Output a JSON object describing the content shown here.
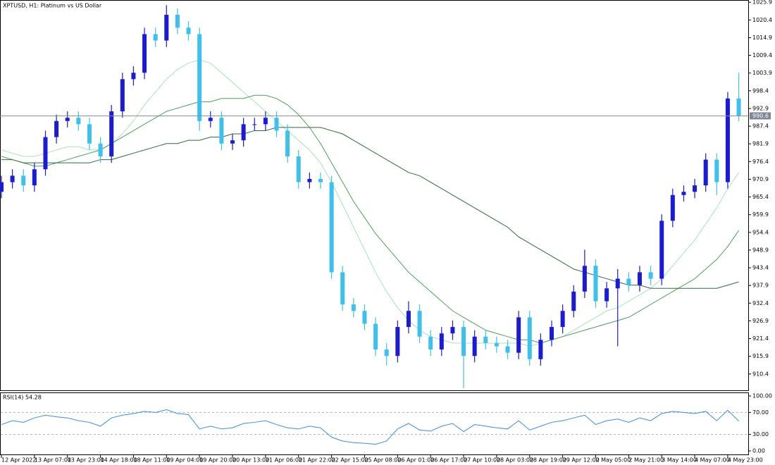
{
  "chart_data": [
    {
      "type": "candlestick",
      "title": "XPTUSD, H1:  Platinum vs US Dollar",
      "categories": [
        "12 Apr 2022",
        null,
        null,
        "13 Apr 07:00",
        null,
        null,
        "13 Apr 23:00",
        null,
        null,
        "14 Apr 18:00",
        null,
        null,
        "18 Apr 11:00",
        null,
        null,
        "19 Apr 04:00",
        null,
        null,
        "19 Apr 20:00",
        null,
        null,
        "20 Apr 13:00",
        null,
        null,
        "21 Apr 06:00",
        null,
        null,
        "21 Apr 22:00",
        null,
        null,
        "22 Apr 15:00",
        null,
        null,
        "25 Apr 08:00",
        null,
        null,
        "26 Apr 01:00",
        null,
        null,
        "26 Apr 17:00",
        null,
        null,
        "27 Apr 10:00",
        null,
        null,
        "28 Apr 03:00",
        null,
        null,
        "28 Apr 19:00",
        null,
        null,
        "29 Apr 12:00",
        null,
        null,
        "2 May 05:00",
        null,
        null,
        "2 May 21:00",
        null,
        null,
        "3 May 14:00",
        null,
        null,
        "4 May 07:00",
        null,
        null,
        "4 May 23:00",
        null
      ],
      "open": [
        967,
        970,
        972,
        969,
        974,
        984,
        989,
        990,
        988,
        982,
        978,
        992,
        1002,
        1004,
        1016,
        1014,
        1022,
        1018,
        1016,
        989,
        990,
        982,
        983,
        988,
        988,
        990,
        986,
        978,
        970,
        971,
        970,
        942,
        932,
        930,
        926,
        918,
        916,
        925,
        930,
        922,
        918,
        923,
        925,
        916,
        922,
        920,
        919,
        917,
        928,
        915,
        921,
        925,
        930,
        936,
        944,
        933,
        937,
        940,
        938,
        942,
        940,
        958,
        966,
        967,
        969,
        977,
        970,
        996
      ],
      "high": [
        972,
        974,
        974,
        976,
        986,
        991,
        992,
        992,
        990,
        984,
        994,
        1004,
        1006,
        1018,
        1018,
        1025,
        1024,
        1020,
        1018,
        992,
        992,
        985,
        990,
        990,
        992,
        992,
        988,
        980,
        973,
        973,
        972,
        944,
        934,
        932,
        928,
        920,
        927,
        933,
        932,
        924,
        925,
        927,
        927,
        924,
        924,
        922,
        921,
        930,
        930,
        923,
        927,
        932,
        938,
        949,
        946,
        939,
        943,
        942,
        944,
        944,
        960,
        968,
        969,
        971,
        979,
        979,
        998,
        1004
      ],
      "low": [
        965,
        968,
        967,
        967,
        972,
        982,
        987,
        986,
        980,
        976,
        976,
        990,
        1000,
        1002,
        1012,
        1012,
        1016,
        1014,
        986,
        987,
        980,
        980,
        981,
        986,
        986,
        984,
        976,
        968,
        968,
        968,
        940,
        930,
        928,
        924,
        916,
        913,
        914,
        923,
        920,
        916,
        916,
        921,
        906,
        914,
        918,
        917,
        915,
        915,
        913,
        913,
        919,
        923,
        928,
        934,
        931,
        931,
        919,
        936,
        936,
        938,
        938,
        956,
        964,
        965,
        967,
        966,
        968,
        989
      ],
      "close": [
        970,
        972,
        969,
        974,
        984,
        989,
        990,
        988,
        982,
        978,
        992,
        1002,
        1004,
        1016,
        1014,
        1022,
        1018,
        1016,
        989,
        990,
        982,
        983,
        988,
        988,
        990,
        986,
        978,
        970,
        971,
        970,
        942,
        932,
        930,
        926,
        918,
        916,
        925,
        930,
        922,
        918,
        923,
        925,
        916,
        922,
        920,
        919,
        917,
        928,
        915,
        921,
        925,
        930,
        936,
        944,
        933,
        937,
        940,
        938,
        942,
        940,
        958,
        966,
        967,
        969,
        977,
        970,
        996,
        990.6
      ],
      "up_color": "#1a1ad8",
      "down_color": "#3cc0ee",
      "moving_averages": [
        {
          "color": "#a6e3bd",
          "values": [
            980,
            979,
            978,
            978,
            979,
            980,
            981,
            981,
            980,
            980,
            982,
            985,
            989,
            994,
            998,
            1002,
            1005,
            1007,
            1008,
            1007,
            1004,
            1001,
            998,
            995,
            992,
            989,
            986,
            983,
            980,
            976,
            970,
            963,
            956,
            949,
            942,
            936,
            931,
            927,
            924,
            922,
            921,
            920,
            920,
            920,
            920,
            920,
            920,
            920,
            919,
            920,
            921,
            922,
            924,
            926,
            928,
            930,
            931,
            933,
            935,
            937,
            940,
            944,
            948,
            952,
            957,
            962,
            968,
            973
          ]
        },
        {
          "color": "#4d9f5c",
          "values": [
            978,
            977,
            976,
            975,
            975,
            976,
            977,
            978,
            979,
            980,
            982,
            984,
            986,
            988,
            990,
            992,
            993,
            994,
            995,
            995,
            996,
            996,
            996,
            997,
            997,
            996,
            994,
            991,
            987,
            982,
            976,
            970,
            964,
            959,
            954,
            950,
            946,
            942,
            939,
            936,
            933,
            930,
            928,
            926,
            924,
            923,
            922,
            921,
            921,
            920,
            921,
            922,
            923,
            924,
            925,
            926,
            927,
            928,
            930,
            932,
            934,
            936,
            938,
            940,
            943,
            946,
            950,
            955
          ]
        },
        {
          "color": "#2f6a3c",
          "values": [
            977,
            977,
            976,
            976,
            976,
            976,
            976,
            976,
            976,
            977,
            977,
            978,
            979,
            980,
            981,
            982,
            982,
            983,
            983,
            984,
            984,
            985,
            985,
            986,
            986,
            987,
            987,
            987,
            987,
            987,
            986,
            985,
            983,
            981,
            979,
            977,
            975,
            973,
            972,
            970,
            968,
            966,
            964,
            962,
            960,
            958,
            956,
            953,
            951,
            949,
            947,
            945,
            943,
            942,
            941,
            940,
            939,
            938,
            938,
            937,
            937,
            937,
            937,
            937,
            937,
            937,
            938,
            939
          ]
        }
      ],
      "current_price": 990.6,
      "ylim": [
        905.1,
        1026.6
      ],
      "yticks": [
        1025.9,
        1020.4,
        1014.9,
        1009.4,
        1003.9,
        998.4,
        992.9,
        987.4,
        981.9,
        976.4,
        970.9,
        965.4,
        959.9,
        954.4,
        948.9,
        943.4,
        937.9,
        932.4,
        926.9,
        921.4,
        915.9,
        910.4
      ]
    },
    {
      "type": "line",
      "title": "RSI(14) 54.28",
      "color": "#3a8de0",
      "values": [
        48,
        55,
        52,
        60,
        65,
        62,
        60,
        55,
        52,
        45,
        60,
        65,
        68,
        72,
        70,
        75,
        68,
        66,
        40,
        45,
        40,
        42,
        50,
        52,
        55,
        48,
        42,
        40,
        45,
        42,
        25,
        18,
        15,
        14,
        12,
        18,
        40,
        50,
        38,
        36,
        45,
        50,
        35,
        48,
        45,
        42,
        40,
        55,
        38,
        45,
        52,
        55,
        60,
        65,
        48,
        55,
        58,
        52,
        60,
        55,
        68,
        72,
        70,
        68,
        72,
        55,
        74,
        54.28
      ],
      "ylim": [
        -6.4,
        106.4
      ],
      "yticks": [
        {
          "value": 100,
          "label": "100.00"
        },
        {
          "value": 70,
          "label": "70.00"
        },
        {
          "value": 30,
          "label": "30.00"
        },
        {
          "value": 0,
          "label": "0.00"
        }
      ],
      "levels": [
        70,
        30
      ]
    }
  ]
}
